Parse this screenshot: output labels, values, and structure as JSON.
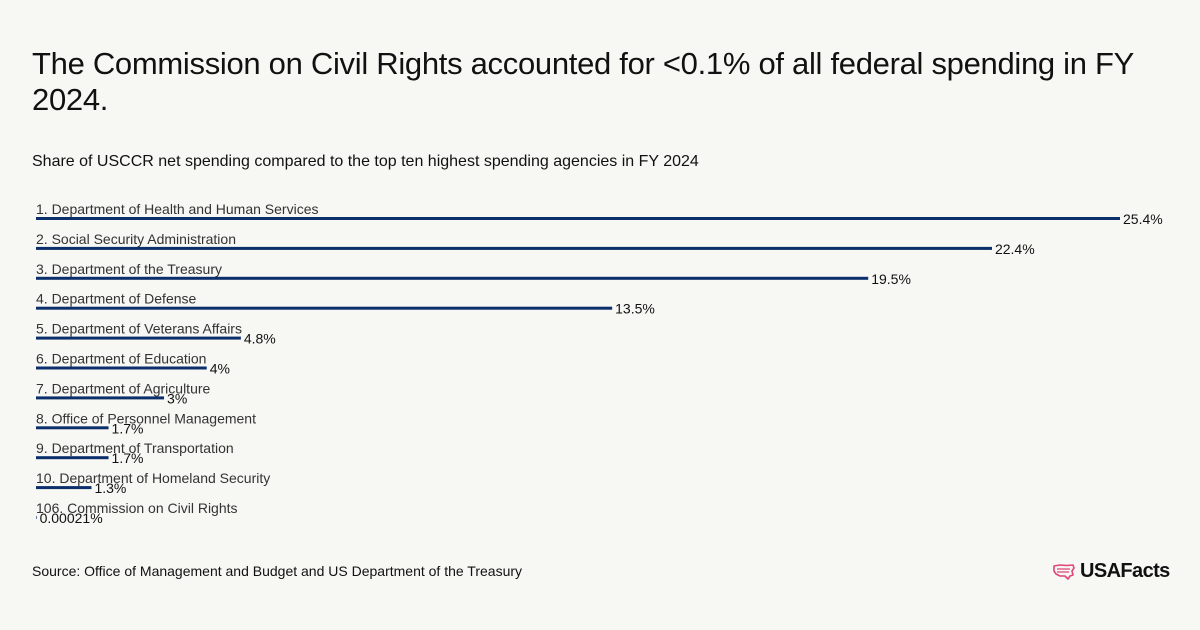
{
  "title": "The Commission on Civil Rights accounted for <0.1% of all federal spending in FY 2024.",
  "subtitle": "Share of USCCR net spending compared to the top ten highest spending agencies in FY 2024",
  "source": "Source: Office of Management and Budget and US Department of the Treasury",
  "brand": {
    "name": "USAFacts",
    "icon": "us-map-icon",
    "icon_color": "#e0457b"
  },
  "colors": {
    "bar": "#0b2f6b"
  },
  "chart_data": {
    "type": "bar",
    "orientation": "horizontal",
    "categories": [
      "1. Department of Health and Human Services",
      "2. Social Security Administration",
      "3. Department of the Treasury",
      "4. Department of Defense",
      "5. Department of Veterans Affairs",
      "6. Department of Education",
      "7. Department of Agriculture",
      "8. Office of Personnel Management",
      "9. Department of Transportation",
      "10. Department of Homeland Security",
      "106. Commission on Civil Rights"
    ],
    "values": [
      25.4,
      22.4,
      19.5,
      13.5,
      4.8,
      4,
      3,
      1.7,
      1.7,
      1.3,
      0.00021
    ],
    "value_labels": [
      "25.4%",
      "22.4%",
      "19.5%",
      "13.5%",
      "4.8%",
      "4%",
      "3%",
      "1.7%",
      "1.7%",
      "1.3%",
      "0.00021%"
    ],
    "xlim": [
      0,
      25.4
    ],
    "grid": false,
    "legend": "none"
  }
}
